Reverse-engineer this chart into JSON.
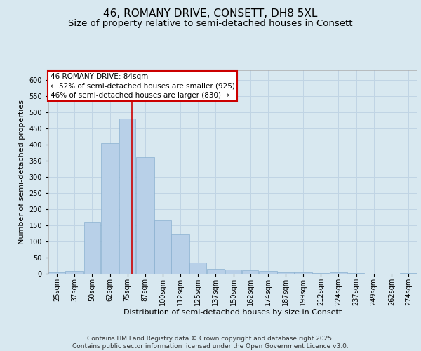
{
  "title": "46, ROMANY DRIVE, CONSETT, DH8 5XL",
  "subtitle": "Size of property relative to semi-detached houses in Consett",
  "xlabel": "Distribution of semi-detached houses by size in Consett",
  "ylabel": "Number of semi-detached properties",
  "property_label": "46 ROMANY DRIVE: 84sqm",
  "smaller_pct": 52,
  "smaller_count": 925,
  "larger_pct": 46,
  "larger_count": 830,
  "bin_labels": [
    "25sqm",
    "37sqm",
    "50sqm",
    "62sqm",
    "75sqm",
    "87sqm",
    "100sqm",
    "112sqm",
    "125sqm",
    "137sqm",
    "150sqm",
    "162sqm",
    "174sqm",
    "187sqm",
    "199sqm",
    "212sqm",
    "224sqm",
    "237sqm",
    "249sqm",
    "262sqm",
    "274sqm"
  ],
  "bin_edges": [
    25,
    37,
    50,
    62,
    75,
    87,
    100,
    112,
    125,
    137,
    150,
    162,
    174,
    187,
    199,
    212,
    224,
    237,
    249,
    262,
    274,
    286
  ],
  "bar_heights": [
    5,
    8,
    160,
    405,
    480,
    360,
    165,
    122,
    35,
    15,
    12,
    10,
    8,
    5,
    5,
    3,
    5,
    2,
    1,
    1,
    2
  ],
  "bar_color": "#b8d0e8",
  "bar_edge_color": "#8ab0d0",
  "vline_x": 84,
  "vline_color": "#cc0000",
  "grid_color": "#c0d4e4",
  "bg_color": "#d8e8f0",
  "annotation_box_color": "#cc0000",
  "ylim": [
    0,
    630
  ],
  "yticks": [
    0,
    50,
    100,
    150,
    200,
    250,
    300,
    350,
    400,
    450,
    500,
    550,
    600
  ],
  "footer": "Contains HM Land Registry data © Crown copyright and database right 2025.\nContains public sector information licensed under the Open Government Licence v3.0.",
  "title_fontsize": 11,
  "subtitle_fontsize": 9.5,
  "label_fontsize": 8,
  "tick_fontsize": 7,
  "annotation_fontsize": 7.5,
  "footer_fontsize": 6.5
}
